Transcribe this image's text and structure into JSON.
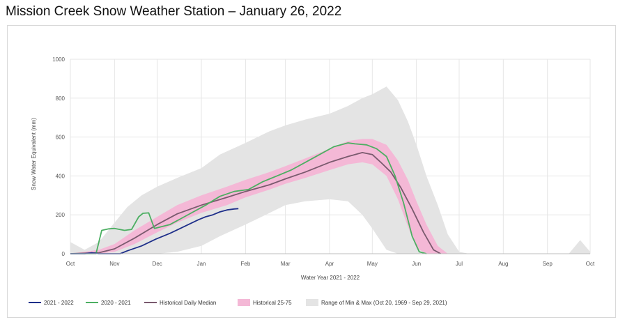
{
  "page": {
    "title": "Mission Creek Snow Weather Station – January 26, 2022"
  },
  "chart_data": {
    "type": "line",
    "title": "Mission Creek Snow Weather Station – January 26, 2022",
    "xlabel": "Water Year 2021 - 2022",
    "ylabel": "Snow Water Equivalent (mm)",
    "ylim": [
      0,
      1000
    ],
    "yticks": [
      0,
      200,
      400,
      600,
      800,
      1000
    ],
    "yticks_labels": [
      "0",
      "200",
      "400",
      "600",
      "800",
      "1000"
    ],
    "xlim": [
      0,
      365
    ],
    "months": [
      {
        "label": "Oct",
        "day": 0
      },
      {
        "label": "Nov",
        "day": 31
      },
      {
        "label": "Dec",
        "day": 61
      },
      {
        "label": "Jan",
        "day": 92
      },
      {
        "label": "Feb",
        "day": 123
      },
      {
        "label": "Mar",
        "day": 151
      },
      {
        "label": "Apr",
        "day": 182
      },
      {
        "label": "May",
        "day": 212
      },
      {
        "label": "Jun",
        "day": 243
      },
      {
        "label": "Jul",
        "day": 273
      },
      {
        "label": "Aug",
        "day": 304
      },
      {
        "label": "Sep",
        "day": 335
      },
      {
        "label": "Oct",
        "day": 365
      }
    ],
    "grid": true,
    "legend_position": "bottom",
    "series": [
      {
        "name": "Range of Min & Max (Oct 20, 1969 - Sep 29, 2021)",
        "kind": "band",
        "color": "#e4e4e4",
        "x": [
          0,
          10,
          20,
          31,
          40,
          50,
          61,
          75,
          92,
          105,
          123,
          140,
          151,
          165,
          182,
          195,
          205,
          212,
          222,
          230,
          237,
          243,
          250,
          258,
          265,
          273,
          280,
          300,
          330,
          350,
          358,
          365
        ],
        "upper": [
          60,
          20,
          60,
          160,
          240,
          300,
          345,
          390,
          440,
          510,
          570,
          630,
          660,
          690,
          720,
          760,
          800,
          820,
          860,
          790,
          680,
          560,
          400,
          250,
          100,
          10,
          0,
          0,
          0,
          0,
          70,
          10
        ],
        "lower": [
          0,
          0,
          0,
          0,
          0,
          0,
          0,
          10,
          40,
          90,
          150,
          210,
          250,
          270,
          280,
          270,
          200,
          130,
          20,
          0,
          0,
          0,
          0,
          0,
          0,
          0,
          0,
          0,
          0,
          0,
          0,
          0
        ]
      },
      {
        "name": "Historical 25-75",
        "kind": "band",
        "color": "#f4b8d6",
        "x": [
          0,
          20,
          31,
          45,
          61,
          75,
          92,
          110,
          123,
          140,
          151,
          165,
          182,
          195,
          205,
          212,
          222,
          230,
          237,
          243,
          250,
          258,
          265
        ],
        "upper": [
          0,
          20,
          50,
          120,
          190,
          250,
          300,
          345,
          380,
          420,
          450,
          490,
          540,
          580,
          590,
          590,
          560,
          480,
          380,
          270,
          150,
          40,
          0
        ],
        "lower": [
          0,
          0,
          10,
          50,
          110,
          160,
          210,
          250,
          290,
          330,
          360,
          390,
          430,
          460,
          470,
          460,
          400,
          280,
          140,
          30,
          0,
          0,
          0
        ]
      },
      {
        "name": "Historical Daily Median",
        "kind": "line",
        "color": "#7a5a6e",
        "x": [
          0,
          20,
          31,
          45,
          61,
          75,
          92,
          110,
          123,
          140,
          151,
          165,
          182,
          195,
          205,
          212,
          218,
          225,
          232,
          240,
          248,
          255,
          260
        ],
        "values": [
          0,
          5,
          25,
          80,
          150,
          205,
          250,
          290,
          320,
          355,
          385,
          420,
          470,
          500,
          520,
          510,
          470,
          420,
          340,
          230,
          110,
          20,
          0
        ]
      },
      {
        "name": "2020 - 2021",
        "kind": "line",
        "color": "#4caf62",
        "x": [
          0,
          18,
          22,
          27,
          31,
          38,
          43,
          48,
          51,
          55,
          59,
          70,
          80,
          95,
          105,
          115,
          125,
          135,
          145,
          155,
          165,
          175,
          185,
          195,
          200,
          208,
          215,
          222,
          228,
          234,
          240,
          245,
          250
        ],
        "values": [
          0,
          0,
          120,
          128,
          130,
          120,
          125,
          190,
          208,
          210,
          130,
          150,
          190,
          250,
          295,
          320,
          330,
          370,
          400,
          430,
          470,
          510,
          550,
          570,
          565,
          560,
          540,
          500,
          400,
          260,
          90,
          10,
          0
        ]
      },
      {
        "name": "2021 - 2022",
        "kind": "line",
        "color": "#1e2f8a",
        "x": [
          0,
          10,
          15,
          20,
          25,
          30,
          35,
          40,
          50,
          60,
          70,
          80,
          90,
          95,
          100,
          105,
          110,
          115,
          118
        ],
        "values": [
          0,
          0,
          5,
          0,
          0,
          0,
          0,
          15,
          40,
          75,
          105,
          140,
          175,
          190,
          200,
          215,
          225,
          230,
          232
        ]
      }
    ],
    "legend": [
      {
        "label": "2021 - 2022",
        "color": "#1e2f8a",
        "kind": "line"
      },
      {
        "label": "2020 - 2021",
        "color": "#4caf62",
        "kind": "line"
      },
      {
        "label": "Historical Daily Median",
        "color": "#7a5a6e",
        "kind": "line"
      },
      {
        "label": "Historical 25-75",
        "color": "#f4b8d6",
        "kind": "patch"
      },
      {
        "label": "Range of Min & Max (Oct 20, 1969 - Sep 29, 2021)",
        "color": "#e4e4e4",
        "kind": "patch"
      }
    ]
  }
}
